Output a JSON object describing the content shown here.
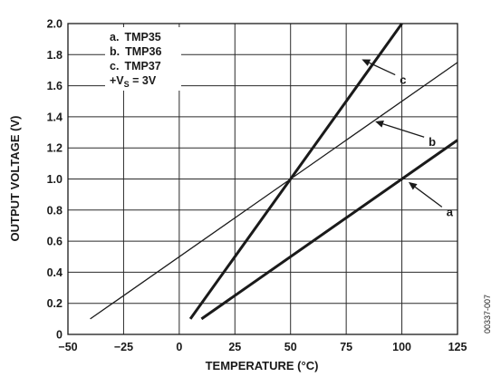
{
  "chart_data": {
    "type": "line",
    "xlabel": "TEMPERATURE (°C)",
    "ylabel": "OUTPUT VOLTAGE (V)",
    "xlim": [
      -50,
      125
    ],
    "ylim": [
      0,
      2.0
    ],
    "x_ticks": [
      "−50",
      "−25",
      "0",
      "25",
      "50",
      "75",
      "100",
      "125"
    ],
    "x_tick_values": [
      -50,
      -25,
      0,
      25,
      50,
      75,
      100,
      125
    ],
    "y_ticks": [
      "0",
      "0.2",
      "0.4",
      "0.6",
      "0.8",
      "1.0",
      "1.2",
      "1.4",
      "1.6",
      "1.8",
      "2.0"
    ],
    "y_tick_values": [
      0,
      0.2,
      0.4,
      0.6,
      0.8,
      1.0,
      1.2,
      1.4,
      1.6,
      1.8,
      2.0
    ],
    "grid": true,
    "legend": {
      "placement": "top-left",
      "lines": [
        {
          "prefix": "a.",
          "text": "TMP35"
        },
        {
          "prefix": "b.",
          "text": "TMP36"
        },
        {
          "prefix": "c.",
          "text": "TMP37"
        }
      ],
      "supply": {
        "prefix": "+V",
        "sub": "S",
        "suffix": " = 3V"
      }
    },
    "series": [
      {
        "label": "a",
        "stroke": "bold",
        "x": [
          10,
          125
        ],
        "y": [
          0.1,
          1.25
        ]
      },
      {
        "label": "b",
        "stroke": "thin",
        "x": [
          -40,
          125
        ],
        "y": [
          0.1,
          1.75
        ]
      },
      {
        "label": "c",
        "stroke": "bold",
        "x": [
          5,
          100
        ],
        "y": [
          0.1,
          2.0
        ]
      }
    ],
    "callouts": [
      {
        "label": "a",
        "from": [
          103,
          0.98
        ],
        "to": [
          118,
          0.82
        ]
      },
      {
        "label": "b",
        "from": [
          88,
          1.37
        ],
        "to": [
          110,
          1.27
        ]
      },
      {
        "label": "c",
        "from": [
          82,
          1.77
        ],
        "to": [
          97,
          1.67
        ]
      }
    ],
    "figure_code": "00337-007"
  }
}
